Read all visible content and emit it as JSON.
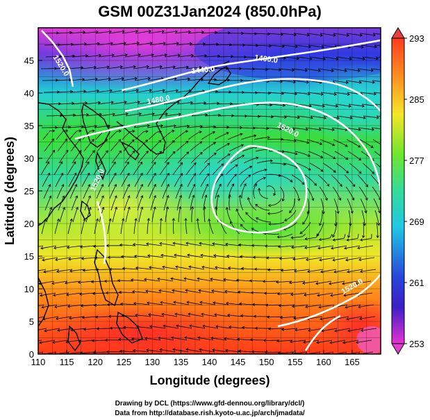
{
  "title": "GSM 00Z31Jan2024 (850.0hPa)",
  "xlabel": "Longitude (degrees)",
  "ylabel": "Latitude (degrees)",
  "x_ticks": [
    "110",
    "115",
    "120",
    "125",
    "130",
    "135",
    "140",
    "145",
    "150",
    "155",
    "160",
    "165"
  ],
  "y_ticks": [
    "0",
    "5",
    "10",
    "15",
    "20",
    "25",
    "30",
    "35",
    "40",
    "45"
  ],
  "colorbar_ticks": [
    "293",
    "285",
    "277",
    "269",
    "261",
    "253"
  ],
  "contour_labels": [
    "1520.0",
    "1400.0",
    "1440.0",
    "1480.0",
    "1520.0",
    "1520.0",
    "1520.0"
  ],
  "credits": {
    "line1": "Drawing by DCL (https://www.gfd-dennou.org/library/dcl/)",
    "line2": "Data from http://database.rish.kyoto-u.ac.jp/arch/jmadata/"
  },
  "chart_data": {
    "type": "heatmap",
    "title": "GSM 00Z31Jan2024 (850.0hPa)",
    "xlabel": "Longitude (degrees)",
    "ylabel": "Latitude (degrees)",
    "xlim": [
      110,
      170
    ],
    "ylim": [
      0,
      50
    ],
    "colorbar": {
      "min": 253,
      "max": 293,
      "ticks": [
        253,
        261,
        269,
        277,
        285,
        293
      ]
    },
    "overlays": [
      "temperature shading",
      "geopotential height contours (white)",
      "wind streamlines",
      "coastlines",
      "lat/lon grid"
    ],
    "contours": [
      {
        "label": "1400.0",
        "lon": 152,
        "lat": 46
      },
      {
        "label": "1440.0",
        "lon": 138,
        "lat": 45
      },
      {
        "label": "1480.0",
        "lon": 133,
        "lat": 40
      },
      {
        "label": "1520.0",
        "lon": 112,
        "lat": 47
      },
      {
        "label": "1520.0",
        "lon": 157,
        "lat": 35
      },
      {
        "label": "1520.0",
        "lon": 165,
        "lat": 10
      },
      {
        "label": "1520.0",
        "lon": 119,
        "lat": 28
      }
    ]
  },
  "colors": {
    "plot_border": "#000000",
    "contour": "#ffffff",
    "background": "#ffffff"
  }
}
